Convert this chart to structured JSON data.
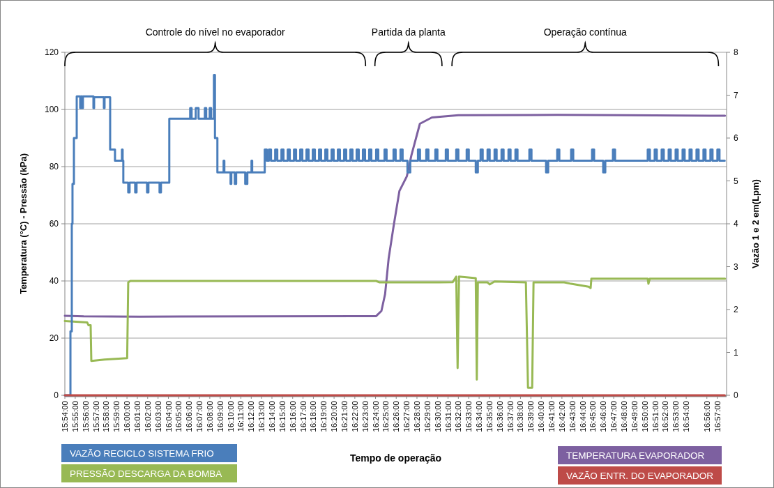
{
  "chart_data": {
    "type": "line",
    "xlabel": "Tempo de operação",
    "ylabel": "Temperatura (°C) - Pressão (kPa)",
    "y2label": "Vazão 1 e 2 em(Lpm)",
    "annotations": [
      "Controle do nível no evaporador",
      "Partida da planta",
      "Operação contínua"
    ],
    "xlim": [
      15.9,
      16.965
    ],
    "xticks": [
      {
        "value": 15.9,
        "label": "15:54:00"
      },
      {
        "value": 15.9167,
        "label": "15:55:00"
      },
      {
        "value": 15.9333,
        "label": "15:56:00"
      },
      {
        "value": 15.95,
        "label": "15:57:00"
      },
      {
        "value": 15.9667,
        "label": "15:58:00"
      },
      {
        "value": 15.9833,
        "label": "15:59:00"
      },
      {
        "value": 16.0,
        "label": "16:00:00"
      },
      {
        "value": 16.0167,
        "label": "16:01:00"
      },
      {
        "value": 16.0333,
        "label": "16:02:00"
      },
      {
        "value": 16.05,
        "label": "16:03:00"
      },
      {
        "value": 16.0667,
        "label": "16:04:00"
      },
      {
        "value": 16.0833,
        "label": "16:05:00"
      },
      {
        "value": 16.1,
        "label": "16:06:00"
      },
      {
        "value": 16.1167,
        "label": "16:07:00"
      },
      {
        "value": 16.1333,
        "label": "16:08:00"
      },
      {
        "value": 16.15,
        "label": "16:09:00"
      },
      {
        "value": 16.1667,
        "label": "16:10:00"
      },
      {
        "value": 16.1833,
        "label": "16:11:00"
      },
      {
        "value": 16.2,
        "label": "16:12:00"
      },
      {
        "value": 16.2167,
        "label": "16:13:00"
      },
      {
        "value": 16.2333,
        "label": "16:14:00"
      },
      {
        "value": 16.25,
        "label": "16:15:00"
      },
      {
        "value": 16.2667,
        "label": "16:16:00"
      },
      {
        "value": 16.2833,
        "label": "16:17:00"
      },
      {
        "value": 16.3,
        "label": "16:18:00"
      },
      {
        "value": 16.3167,
        "label": "16:19:00"
      },
      {
        "value": 16.3333,
        "label": "16:20:00"
      },
      {
        "value": 16.35,
        "label": "16:21:00"
      },
      {
        "value": 16.3667,
        "label": "16:22:00"
      },
      {
        "value": 16.3833,
        "label": "16:23:00"
      },
      {
        "value": 16.4,
        "label": "16:24:00"
      },
      {
        "value": 16.4167,
        "label": "16:25:00"
      },
      {
        "value": 16.4333,
        "label": "16:26:00"
      },
      {
        "value": 16.45,
        "label": "16:27:00"
      },
      {
        "value": 16.4667,
        "label": "16:28:00"
      },
      {
        "value": 16.4833,
        "label": "16:29:00"
      },
      {
        "value": 16.5,
        "label": "16:30:00"
      },
      {
        "value": 16.5167,
        "label": "16:31:00"
      },
      {
        "value": 16.5333,
        "label": "16:32:00"
      },
      {
        "value": 16.55,
        "label": "16:33:00"
      },
      {
        "value": 16.5667,
        "label": "16:34:00"
      },
      {
        "value": 16.5833,
        "label": "16:35:00"
      },
      {
        "value": 16.6,
        "label": "16:36:00"
      },
      {
        "value": 16.6167,
        "label": "16:37:00"
      },
      {
        "value": 16.6333,
        "label": "16:38:00"
      },
      {
        "value": 16.65,
        "label": "16:39:00"
      },
      {
        "value": 16.6667,
        "label": "16:40:00"
      },
      {
        "value": 16.6833,
        "label": "16:41:00"
      },
      {
        "value": 16.7,
        "label": "16:42:00"
      },
      {
        "value": 16.7167,
        "label": "16:43:00"
      },
      {
        "value": 16.7333,
        "label": "16:44:00"
      },
      {
        "value": 16.75,
        "label": "16:45:00"
      },
      {
        "value": 16.7667,
        "label": "16:46:00"
      },
      {
        "value": 16.7833,
        "label": "16:47:00"
      },
      {
        "value": 16.8,
        "label": "16:48:00"
      },
      {
        "value": 16.8167,
        "label": "16:49:00"
      },
      {
        "value": 16.8333,
        "label": "16:50:00"
      },
      {
        "value": 16.85,
        "label": "16:51:00"
      },
      {
        "value": 16.8667,
        "label": "16:52:00"
      },
      {
        "value": 16.8833,
        "label": "16:53:00"
      },
      {
        "value": 16.9,
        "label": "16:54:00"
      },
      {
        "value": 16.9333,
        "label": "16:56:00"
      },
      {
        "value": 16.95,
        "label": "16:57:00"
      }
    ],
    "ylim": [
      0,
      120
    ],
    "yticks": [
      0,
      20,
      40,
      60,
      80,
      100,
      120
    ],
    "y2lim": [
      0,
      8
    ],
    "y2ticks": [
      0,
      1,
      2,
      3,
      4,
      5,
      6,
      7,
      8
    ],
    "grid": "y",
    "legend": "bottom",
    "series": [
      {
        "name": "VAZÃO RECICLO SISTEMA FRIO",
        "type": "step",
        "axis": "y2",
        "color": "#4a7ebb",
        "x": [
          15.9,
          15.909,
          15.9112,
          15.9123,
          15.9146,
          15.9191,
          15.9247,
          15.9258,
          15.928,
          15.9291,
          15.946,
          15.9471,
          15.9628,
          15.9639,
          15.9729,
          15.9807,
          15.9919,
          15.993,
          15.9941,
          16.002,
          16.0042,
          16.0132,
          16.0154,
          16.0323,
          16.0345,
          16.0524,
          16.0547,
          16.0681,
          16.1017,
          16.104,
          16.1107,
          16.1152,
          16.1253,
          16.1275,
          16.1331,
          16.1354,
          16.1399,
          16.1416,
          16.1455,
          16.1555,
          16.1567,
          16.1667,
          16.1679,
          16.1735,
          16.1757,
          16.1903,
          16.1937,
          16.2004,
          16.2015,
          16.2217,
          16.225,
          16.2284,
          16.2318,
          16.2385,
          16.2419,
          16.2486,
          16.2519,
          16.2587,
          16.262,
          16.2688,
          16.2721,
          16.2788,
          16.2822,
          16.2889,
          16.2923,
          16.299,
          16.3024,
          16.3091,
          16.3124,
          16.3192,
          16.3225,
          16.3293,
          16.3326,
          16.3394,
          16.3427,
          16.3495,
          16.3528,
          16.3595,
          16.3629,
          16.3696,
          16.373,
          16.3797,
          16.3831,
          16.3898,
          16.3932,
          16.401,
          16.4044,
          16.4145,
          16.4178,
          16.429,
          16.4324,
          16.4402,
          16.4436,
          16.4514,
          16.4559,
          16.4683,
          16.4716,
          16.4817,
          16.4851,
          16.4963,
          16.4996,
          16.5131,
          16.5165,
          16.5299,
          16.5333,
          16.5467,
          16.5501,
          16.5613,
          16.5647,
          16.5691,
          16.5725,
          16.5803,
          16.5837,
          16.5916,
          16.5949,
          16.6028,
          16.6061,
          16.614,
          16.6173,
          16.6252,
          16.6285,
          16.6476,
          16.651,
          16.6745,
          16.6779,
          16.6924,
          16.6958,
          16.7148,
          16.7182,
          16.7485,
          16.7518,
          16.7664,
          16.7698,
          16.7821,
          16.7855,
          16.8381,
          16.8415,
          16.8493,
          16.8527,
          16.8605,
          16.8639,
          16.8718,
          16.8751,
          16.883,
          16.8863,
          16.8942,
          16.8975,
          16.9054,
          16.9087,
          16.9166,
          16.92,
          16.9278,
          16.9311,
          16.939,
          16.9424,
          16.9502,
          16.9536,
          16.962
        ],
        "values": [
          0,
          1.49,
          4.0,
          4.93,
          6.0,
          6.97,
          6.7,
          6.97,
          6.7,
          6.97,
          6.7,
          6.95,
          6.7,
          6.95,
          5.73,
          5.47,
          5.73,
          5.47,
          4.96,
          4.73,
          4.96,
          4.73,
          4.96,
          4.73,
          4.96,
          4.73,
          4.96,
          6.45,
          6.7,
          6.45,
          6.7,
          6.45,
          6.7,
          6.45,
          6.7,
          6.45,
          7.47,
          6.0,
          5.2,
          5.47,
          5.2,
          4.93,
          5.2,
          4.93,
          5.2,
          4.93,
          5.2,
          5.47,
          5.2,
          5.73,
          5.47,
          5.73,
          5.47,
          5.73,
          5.47,
          5.73,
          5.47,
          5.73,
          5.47,
          5.73,
          5.47,
          5.73,
          5.47,
          5.73,
          5.47,
          5.73,
          5.47,
          5.73,
          5.47,
          5.73,
          5.47,
          5.73,
          5.47,
          5.73,
          5.47,
          5.73,
          5.47,
          5.73,
          5.47,
          5.73,
          5.47,
          5.73,
          5.47,
          5.73,
          5.47,
          5.73,
          5.47,
          5.73,
          5.47,
          5.73,
          5.47,
          5.73,
          5.47,
          5.2,
          5.47,
          5.73,
          5.47,
          5.73,
          5.47,
          5.73,
          5.47,
          5.73,
          5.47,
          5.73,
          5.47,
          5.73,
          5.47,
          5.2,
          5.47,
          5.73,
          5.47,
          5.73,
          5.47,
          5.73,
          5.47,
          5.73,
          5.47,
          5.73,
          5.47,
          5.73,
          5.47,
          5.73,
          5.47,
          5.2,
          5.47,
          5.73,
          5.47,
          5.73,
          5.47,
          5.73,
          5.47,
          5.2,
          5.47,
          5.73,
          5.47,
          5.73,
          5.47,
          5.73,
          5.47,
          5.73,
          5.47,
          5.73,
          5.47,
          5.73,
          5.47,
          5.73,
          5.47,
          5.73,
          5.47,
          5.73,
          5.47,
          5.73,
          5.47,
          5.73,
          5.47,
          5.73,
          5.47,
          5.47
        ]
      },
      {
        "name": "PRESSÃO DESCARGA DA BOMBA",
        "color": "#98b954",
        "x": [
          15.9,
          15.9359,
          15.9381,
          15.9415,
          15.9426,
          15.9639,
          16.0003,
          16.002,
          16.0054,
          16.401,
          16.4066,
          16.5019,
          16.5243,
          16.5299,
          16.5321,
          16.5344,
          16.5613,
          16.563,
          16.5647,
          16.5803,
          16.5837,
          16.5916,
          16.642,
          16.6454,
          16.6521,
          16.6543,
          16.7036,
          16.7148,
          16.7429,
          16.7462,
          16.7474,
          16.8381,
          16.8392,
          16.8415,
          16.9625
        ],
        "values": [
          26,
          25.5,
          24.5,
          24.5,
          12,
          12.5,
          13,
          39.5,
          40,
          40,
          39.5,
          39.5,
          39.6,
          41.5,
          9.5,
          41.5,
          41,
          5.5,
          39.5,
          39.5,
          38.8,
          39.8,
          39.5,
          2.6,
          2.6,
          39.5,
          39.5,
          39,
          38,
          37.5,
          40.8,
          40.8,
          39,
          40.8,
          40.8
        ]
      },
      {
        "name": "TEMPERATURA EVAPORADOR",
        "color": "#7d60a0",
        "x": [
          15.9,
          15.9303,
          16.0199,
          16.401,
          16.4095,
          16.4154,
          16.4212,
          16.429,
          16.4385,
          16.4504,
          16.4578,
          16.4714,
          16.4907,
          16.5333,
          16.6924,
          16.8045,
          16.9625
        ],
        "values": [
          27.8,
          27.6,
          27.5,
          27.7,
          29.5,
          35.4,
          48,
          59,
          71.5,
          76.6,
          84,
          95,
          97.2,
          98,
          98.1,
          98,
          97.8
        ]
      },
      {
        "name": "VAZÃO ENTR. DO EVAPORADOR",
        "axis": "y2",
        "color": "#be4b48",
        "x": [
          15.9,
          16.962
        ],
        "values": [
          0,
          0
        ]
      }
    ]
  }
}
